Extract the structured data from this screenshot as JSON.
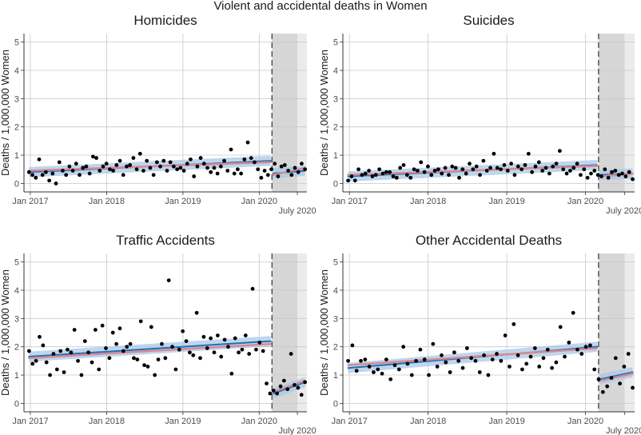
{
  "figure": {
    "title": "Violent and accidental deaths in Women",
    "x_tick_labels": [
      "Jan 2017",
      "Jan 2018",
      "Jan 2019",
      "Jan 2020"
    ],
    "extra_tick_label": "July 2020",
    "colors": {
      "points": "#000000",
      "fit_line": "#1f6fb5",
      "fit_band": "#a8c8e8",
      "trend_line": "#d98a8f",
      "shade_dark": "#d6d6d6",
      "shade_light": "#ebebeb",
      "grid": "#c8c8c8"
    }
  },
  "chart_data": [
    {
      "type": "scatter",
      "title": "Homicides",
      "ylabel": "Deaths / 1,000,000 Women",
      "xlabel": "",
      "ylim": [
        0,
        5
      ],
      "yticks": [
        0,
        1,
        2,
        3,
        4,
        5
      ],
      "xlim_months": [
        -1,
        43.5
      ],
      "x_tick_months": [
        0,
        12,
        24,
        36
      ],
      "intervention_month": 38,
      "july_2020_month": 42,
      "points": [
        0.4,
        0.3,
        0.2,
        0.85,
        0.3,
        0.4,
        0.1,
        0.35,
        0.0,
        0.75,
        0.45,
        0.3,
        0.6,
        0.45,
        0.7,
        0.3,
        0.55,
        0.6,
        0.35,
        0.95,
        0.9,
        0.45,
        0.6,
        0.7,
        0.5,
        0.45,
        0.65,
        0.8,
        0.3,
        0.6,
        0.65,
        0.9,
        0.5,
        1.05,
        0.45,
        0.8,
        0.55,
        0.3,
        0.75,
        0.6,
        0.8,
        0.45,
        0.75,
        0.6,
        0.5,
        0.55,
        0.45,
        0.7,
        0.85,
        0.25,
        0.6,
        0.9,
        0.7,
        0.55,
        0.4,
        0.55,
        0.35,
        0.6,
        0.8,
        0.45,
        1.2,
        0.35,
        0.5,
        0.35,
        0.85,
        1.45,
        0.9,
        0.75,
        0.5,
        0.2,
        0.45,
        0.3,
        0.5,
        0.7,
        0.25,
        0.6,
        0.65,
        0.45,
        0.3,
        0.55,
        0.4,
        0.7,
        0.5
      ],
      "fit_pre": [
        0.4,
        0.8
      ],
      "fit_post": [
        0.35,
        0.45
      ],
      "trend_pre": [
        0.45,
        0.75
      ],
      "trend_post": [
        0.3,
        0.55
      ]
    },
    {
      "type": "scatter",
      "title": "Suicides",
      "ylabel": "Deaths / 1,000,000 Women",
      "xlabel": "",
      "ylim": [
        0,
        5
      ],
      "yticks": [
        0,
        1,
        2,
        3,
        4,
        5
      ],
      "xlim_months": [
        -1,
        43.5
      ],
      "x_tick_months": [
        0,
        12,
        24,
        36
      ],
      "intervention_month": 38,
      "july_2020_month": 42,
      "points": [
        0.1,
        0.25,
        0.1,
        0.5,
        0.3,
        0.35,
        0.45,
        0.25,
        0.3,
        0.5,
        0.35,
        0.4,
        0.4,
        0.25,
        0.2,
        0.55,
        0.65,
        0.3,
        0.2,
        0.5,
        0.45,
        0.75,
        0.4,
        0.6,
        0.3,
        0.45,
        0.5,
        0.35,
        0.55,
        0.3,
        0.6,
        0.55,
        0.2,
        0.5,
        0.35,
        0.7,
        0.5,
        0.6,
        0.3,
        0.8,
        0.45,
        0.55,
        1.05,
        0.55,
        0.5,
        0.65,
        0.45,
        0.7,
        0.3,
        0.6,
        0.5,
        0.65,
        1.05,
        0.4,
        0.6,
        0.75,
        0.45,
        0.55,
        0.35,
        0.6,
        0.7,
        1.15,
        0.5,
        0.35,
        0.45,
        0.55,
        0.7,
        0.3,
        0.5,
        0.2,
        0.35,
        0.45,
        0.3,
        0.25,
        0.5,
        0.2,
        0.4,
        0.45,
        0.3,
        0.35,
        0.25,
        0.4,
        0.15
      ],
      "fit_pre": [
        0.25,
        0.65
      ],
      "fit_post": [
        0.3,
        0.35
      ],
      "trend_pre": [
        0.3,
        0.62
      ],
      "trend_post": [
        0.25,
        0.35
      ]
    },
    {
      "type": "scatter",
      "title": "Traffic Accidents",
      "ylabel": "Deaths / 1,000,000 Women",
      "xlabel": "",
      "ylim": [
        0,
        5
      ],
      "yticks": [
        0,
        1,
        2,
        3,
        4,
        5
      ],
      "xlim_months": [
        -1,
        43.5
      ],
      "x_tick_months": [
        0,
        12,
        24,
        36
      ],
      "intervention_month": 38,
      "july_2020_month": 42,
      "points": [
        1.85,
        1.4,
        1.5,
        2.35,
        2.05,
        1.45,
        1.0,
        1.75,
        1.2,
        1.85,
        1.1,
        1.9,
        1.8,
        2.6,
        1.5,
        1.0,
        2.2,
        1.8,
        1.45,
        2.6,
        1.2,
        2.75,
        1.95,
        1.6,
        2.5,
        2.1,
        2.65,
        1.85,
        2.0,
        2.1,
        1.6,
        1.55,
        2.9,
        1.35,
        1.3,
        2.7,
        1.0,
        1.55,
        2.1,
        1.6,
        4.35,
        2.0,
        1.2,
        1.9,
        2.55,
        2.2,
        1.8,
        1.7,
        3.2,
        1.6,
        2.35,
        1.95,
        2.3,
        1.8,
        2.4,
        1.65,
        2.25,
        2.0,
        1.05,
        2.3,
        1.8,
        1.9,
        2.4,
        1.75,
        4.05,
        1.9,
        2.15,
        1.85,
        0.7,
        0.35,
        0.45,
        0.35,
        0.6,
        0.8,
        0.5,
        1.75,
        0.65,
        0.55,
        0.3,
        0.75
      ],
      "fit_pre": [
        1.65,
        2.2
      ],
      "fit_post": [
        0.35,
        0.75
      ],
      "trend_pre": [
        1.6,
        2.1
      ],
      "trend_post": [
        0.4,
        0.8
      ]
    },
    {
      "type": "scatter",
      "title": "Other Accidental Deaths",
      "ylabel": "Deaths / 1,000,000 Women",
      "xlabel": "",
      "ylim": [
        0,
        5
      ],
      "yticks": [
        0,
        1,
        2,
        3,
        4,
        5
      ],
      "xlim_months": [
        -1,
        43.5
      ],
      "x_tick_months": [
        0,
        12,
        24,
        36
      ],
      "intervention_month": 38,
      "july_2020_month": 42,
      "points": [
        1.5,
        2.05,
        1.15,
        1.5,
        1.55,
        1.3,
        1.1,
        1.2,
        1.05,
        1.55,
        0.85,
        1.35,
        1.2,
        2.0,
        1.4,
        1.0,
        1.5,
        1.9,
        1.55,
        1.0,
        2.1,
        1.3,
        1.7,
        1.45,
        1.1,
        1.8,
        1.5,
        1.25,
        1.95,
        1.6,
        1.5,
        1.1,
        1.7,
        1.0,
        1.55,
        1.75,
        1.5,
        2.4,
        1.3,
        2.8,
        1.7,
        1.2,
        1.4,
        1.65,
        1.95,
        1.3,
        1.6,
        1.9,
        1.25,
        1.45,
        2.7,
        1.65,
        2.15,
        3.2,
        1.9,
        1.75,
        2.0,
        2.05,
        1.2,
        0.85,
        0.4,
        0.6,
        0.9,
        1.6,
        0.7,
        1.3,
        1.75,
        0.55
      ],
      "fit_pre": [
        1.25,
        2.0
      ],
      "fit_post": [
        0.85,
        1.1
      ],
      "trend_pre": [
        1.35,
        1.95
      ],
      "trend_post": [
        0.8,
        1.05
      ]
    }
  ]
}
